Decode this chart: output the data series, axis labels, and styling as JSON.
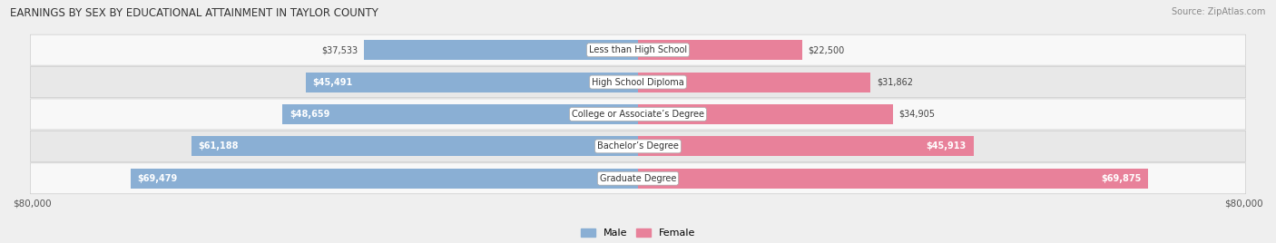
{
  "title": "EARNINGS BY SEX BY EDUCATIONAL ATTAINMENT IN TAYLOR COUNTY",
  "source": "Source: ZipAtlas.com",
  "categories": [
    "Less than High School",
    "High School Diploma",
    "College or Associate’s Degree",
    "Bachelor’s Degree",
    "Graduate Degree"
  ],
  "male_values": [
    37533,
    45491,
    48659,
    61188,
    69479
  ],
  "female_values": [
    22500,
    31862,
    34905,
    45913,
    69875
  ],
  "max_value": 80000,
  "male_color": "#8aafd4",
  "female_color": "#e8819a",
  "male_label": "Male",
  "female_label": "Female",
  "bar_height": 0.62,
  "background_color": "#efefef",
  "row_bg_odd": "#f8f8f8",
  "row_bg_even": "#e8e8e8",
  "axis_label_left": "$80,000",
  "axis_label_right": "$80,000",
  "male_inside_threshold": 45000,
  "female_inside_threshold": 30000
}
